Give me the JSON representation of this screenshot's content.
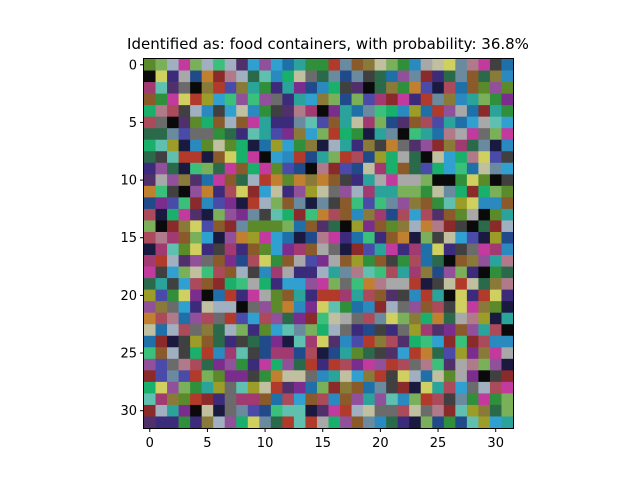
{
  "chart_data": {
    "type": "heatmap",
    "title": "Identified as: food containers, with probability: 36.8%",
    "xlabel": "",
    "ylabel": "",
    "grid": false,
    "rows": 32,
    "cols": 32,
    "xlim": [
      -0.5,
      31.5
    ],
    "ylim": [
      31.5,
      -0.5
    ],
    "x_ticks": [
      0,
      5,
      10,
      15,
      20,
      25,
      30
    ],
    "y_ticks": [
      0,
      5,
      10,
      15,
      20,
      25,
      30
    ],
    "palette": [
      "#7a2d8c",
      "#2f8f3a",
      "#b23a2a",
      "#1f6fa8",
      "#9c9c28",
      "#2aa39b",
      "#6b6b6b",
      "#a8a8a8",
      "#3b2b7a",
      "#8a5a2a",
      "#c23a9e",
      "#18b06a",
      "#1a1a40",
      "#5a8a2a",
      "#aa4a5a",
      "#4a4aa8",
      "#2a6a4a",
      "#b07a8a",
      "#60c0b0",
      "#d0d060",
      "#404040",
      "#8a2a2a",
      "#2a8ac0",
      "#7ab05a",
      "#c08030",
      "#50306a",
      "#30a0d0",
      "#90509a",
      "#a0b0c0",
      "#204a8a",
      "#c0c0a0",
      "#0a0a0a",
      "#6a8aa0",
      "#a03a70",
      "#3ac07a",
      "#8a7a3a"
    ],
    "seed": 368
  }
}
